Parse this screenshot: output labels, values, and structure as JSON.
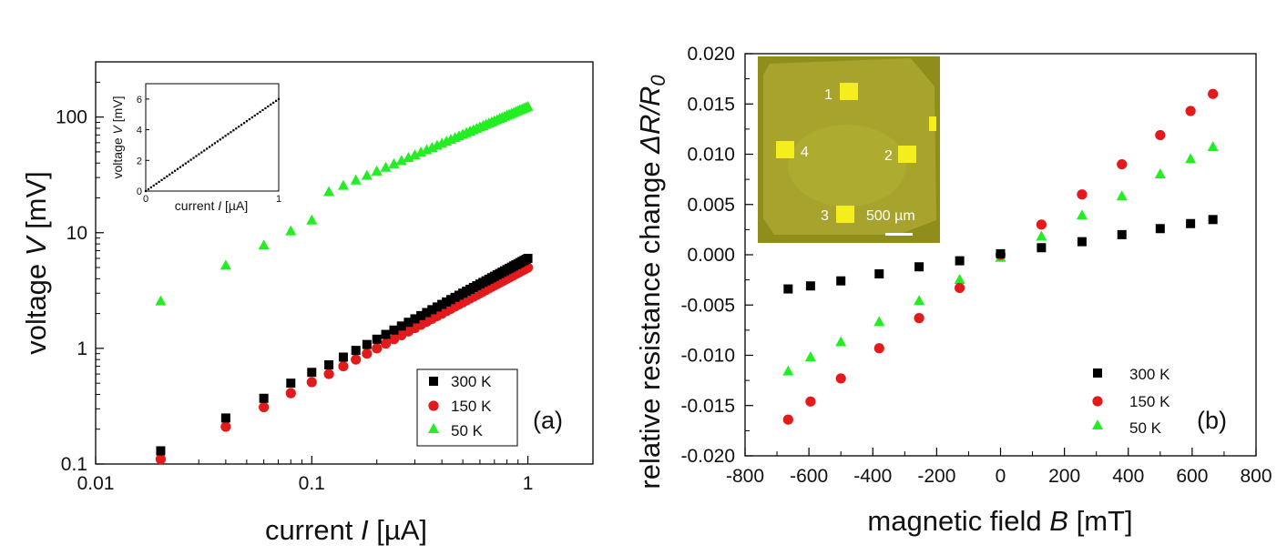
{
  "chart_data": [
    {
      "panel": "(a)",
      "type": "scatter",
      "xscale": "log",
      "yscale": "log",
      "xlabel_prefix": "current ",
      "xlabel_var": "I",
      "xlabel_unit": " [µA]",
      "ylabel_prefix": "voltage ",
      "ylabel_var": "V",
      "ylabel_unit": " [mV]",
      "xlim": [
        0.01,
        2
      ],
      "ylim": [
        0.1,
        300
      ],
      "x_ticks": [
        {
          "v": 0.01,
          "label": "0.01"
        },
        {
          "v": 0.1,
          "label": "0.1"
        },
        {
          "v": 1,
          "label": "1"
        }
      ],
      "y_ticks": [
        {
          "v": 0.1,
          "label": "0.1"
        },
        {
          "v": 1,
          "label": "1"
        },
        {
          "v": 10,
          "label": "10"
        },
        {
          "v": 100,
          "label": "100"
        }
      ],
      "x": [
        0.02,
        0.04,
        0.06,
        0.08,
        0.1,
        0.12,
        0.14,
        0.16,
        0.18,
        0.2,
        0.22,
        0.24,
        0.26,
        0.28,
        0.3,
        0.32,
        0.34,
        0.36,
        0.38,
        0.4,
        0.42,
        0.44,
        0.46,
        0.48,
        0.5,
        0.52,
        0.54,
        0.56,
        0.58,
        0.6,
        0.62,
        0.64,
        0.66,
        0.68,
        0.7,
        0.72,
        0.74,
        0.76,
        0.78,
        0.8,
        0.82,
        0.84,
        0.86,
        0.88,
        0.9,
        0.92,
        0.94,
        0.96,
        0.98,
        1.0
      ],
      "series": [
        {
          "name": "300 K",
          "color": "#000000",
          "marker": "square",
          "prop": 6.0,
          "exponent": 1.0,
          "low": [
            0.13,
            0.25,
            0.37,
            0.5,
            0.62
          ]
        },
        {
          "name": "150 K",
          "color": "#e31a1c",
          "marker": "circle",
          "prop": 5.0,
          "exponent": 1.0,
          "low": [
            0.11,
            0.21,
            0.31,
            0.41,
            0.51
          ]
        },
        {
          "name": "50 K",
          "color": "#22ee22",
          "marker": "triangle",
          "prop": 125,
          "exponent": 0.8,
          "low": [
            2.6,
            5.3,
            7.9,
            10.5,
            13.0
          ]
        }
      ],
      "legend": [
        "300 K",
        "150 K",
        "50 K"
      ],
      "inset": {
        "xlabel_prefix": "current ",
        "xlabel_var": "I",
        "xlabel_unit": " [µA]",
        "ylabel_prefix": "voltage ",
        "ylabel_var": "V",
        "ylabel_unit": " [mV]",
        "xlim": [
          0,
          1
        ],
        "ylim": [
          0,
          7
        ],
        "x_ticks": [
          {
            "v": 0,
            "label": "0"
          },
          {
            "v": 1,
            "label": "1"
          }
        ],
        "y_ticks": [
          {
            "v": 0,
            "label": "0"
          },
          {
            "v": 2,
            "label": "2"
          },
          {
            "v": 4,
            "label": "4"
          },
          {
            "v": 6,
            "label": "6"
          }
        ],
        "slope": 6.0
      }
    },
    {
      "panel": "(b)",
      "type": "scatter",
      "xlabel_prefix": "magnetic field ",
      "xlabel_var": "B",
      "xlabel_unit": " [mT]",
      "ylabel_prefix": "relative resistance change ",
      "ylabel_var": "ΔR/R",
      "ylabel_sub": "0",
      "xlim": [
        -800,
        800
      ],
      "ylim": [
        -0.02,
        0.02
      ],
      "x_ticks": [
        {
          "v": -800,
          "label": "-800"
        },
        {
          "v": -600,
          "label": "-600"
        },
        {
          "v": -400,
          "label": "-400"
        },
        {
          "v": -200,
          "label": "-200"
        },
        {
          "v": 0,
          "label": "0"
        },
        {
          "v": 200,
          "label": "200"
        },
        {
          "v": 400,
          "label": "400"
        },
        {
          "v": 600,
          "label": "600"
        },
        {
          "v": 800,
          "label": "800"
        }
      ],
      "y_ticks": [
        {
          "v": -0.02,
          "label": "-0.020"
        },
        {
          "v": -0.015,
          "label": "-0.015"
        },
        {
          "v": -0.01,
          "label": "-0.010"
        },
        {
          "v": -0.005,
          "label": "-0.005"
        },
        {
          "v": 0,
          "label": "0.000"
        },
        {
          "v": 0.005,
          "label": "0.005"
        },
        {
          "v": 0.01,
          "label": "0.010"
        },
        {
          "v": 0.015,
          "label": "0.015"
        },
        {
          "v": 0.02,
          "label": "0.020"
        }
      ],
      "x": [
        -665,
        -595,
        -500,
        -380,
        -255,
        -128,
        0,
        128,
        255,
        380,
        500,
        595,
        665
      ],
      "series": [
        {
          "name": "300 K",
          "color": "#000000",
          "marker": "square",
          "values": [
            -0.0034,
            -0.0031,
            -0.0026,
            -0.0019,
            -0.0012,
            -0.0006,
            0.0001,
            0.0007,
            0.0013,
            0.002,
            0.0026,
            0.0031,
            0.0035
          ]
        },
        {
          "name": "150 K",
          "color": "#e31a1c",
          "marker": "circle",
          "values": [
            -0.0164,
            -0.0146,
            -0.0123,
            -0.0093,
            -0.0063,
            -0.0033,
            0.0,
            0.003,
            0.006,
            0.009,
            0.0119,
            0.0143,
            0.016
          ]
        },
        {
          "name": "50 K",
          "color": "#22ee22",
          "marker": "triangle",
          "values": [
            -0.0115,
            -0.0101,
            -0.0086,
            -0.0066,
            -0.0045,
            -0.0024,
            -0.0002,
            0.0019,
            0.004,
            0.0059,
            0.0081,
            0.0096,
            0.0108
          ]
        }
      ],
      "legend": [
        "300 K",
        "150 K",
        "50 K"
      ],
      "photo": {
        "labels": [
          "1",
          "2",
          "3",
          "4"
        ],
        "scalebar": "500 µm"
      }
    }
  ]
}
